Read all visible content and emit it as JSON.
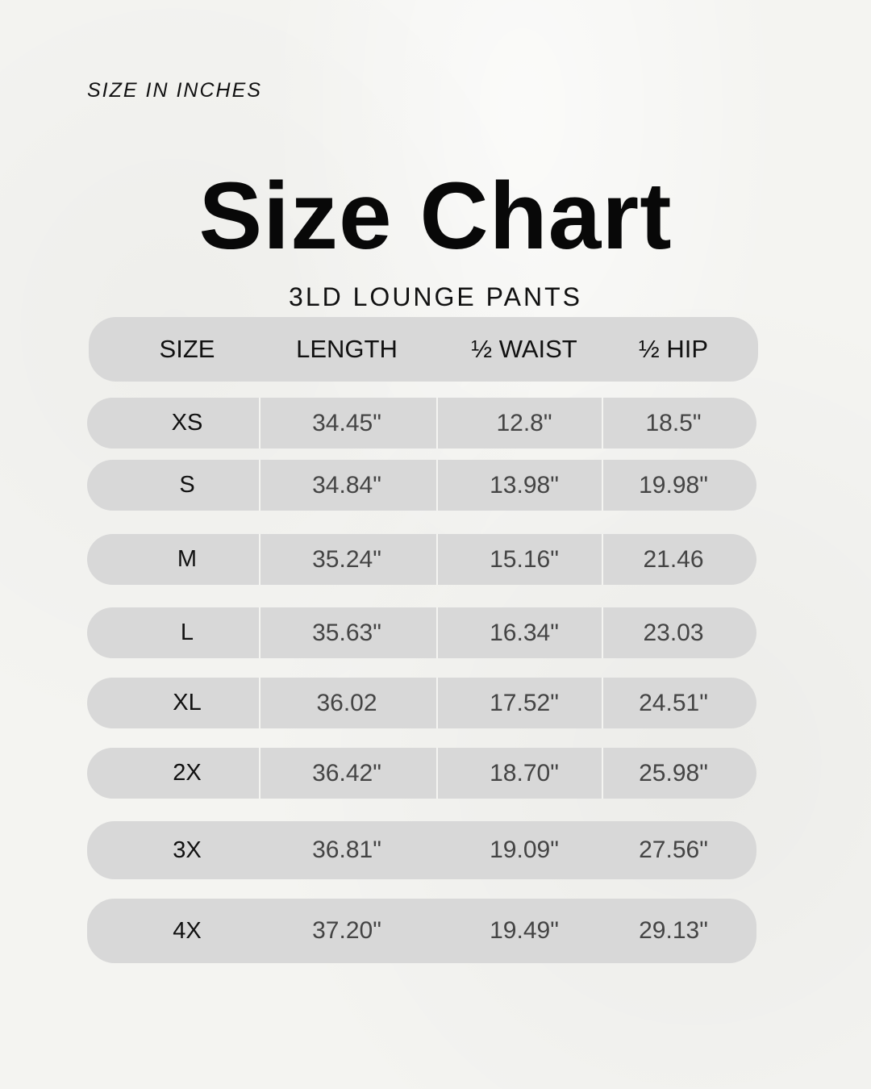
{
  "note": "SIZE IN INCHES",
  "title": "Size Chart",
  "subtitle": "3LD LOUNGE PANTS",
  "table": {
    "headers": [
      "SIZE",
      "LENGTH",
      "½ WAIST",
      "½ HIP"
    ],
    "rows": [
      [
        "XS",
        "34.45\"",
        "12.8\"",
        "18.5\""
      ],
      [
        "S",
        "34.84\"",
        "13.98\"",
        "19.98\""
      ],
      [
        "M",
        "35.24\"",
        "15.16\"",
        "21.46"
      ],
      [
        "L",
        "35.63\"",
        "16.34\"",
        "23.03"
      ],
      [
        "XL",
        "36.02",
        "17.52\"",
        "24.51\""
      ],
      [
        "2X",
        "36.42\"",
        "18.70\"",
        "25.98\""
      ],
      [
        "3X",
        "36.81\"",
        "19.09\"",
        "27.56\""
      ],
      [
        "4X",
        "37.20\"",
        "19.49\"",
        "29.13\""
      ]
    ]
  },
  "colors": {
    "row_fill": "#d8d8d8",
    "background": "#f4f4f1"
  }
}
